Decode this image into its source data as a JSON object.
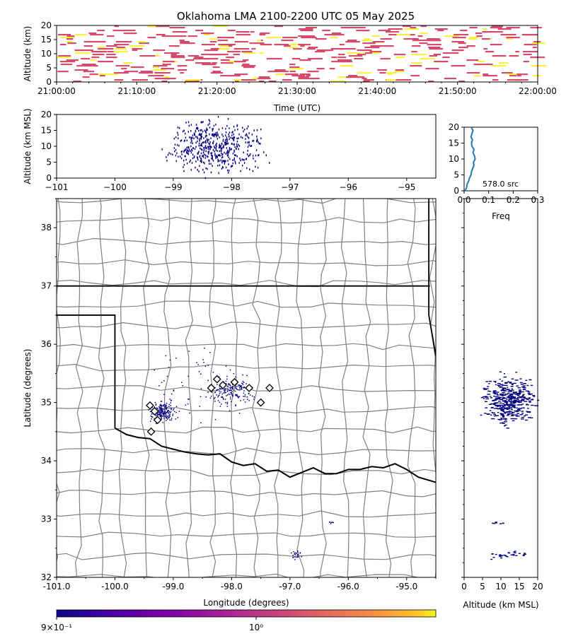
{
  "title": "Oklahoma LMA 2100-2200 UTC 05 May 2025",
  "colors": {
    "dot": "#000080",
    "hist_line": "#1f77b4",
    "magenta": "#d44c6b",
    "yellow": "#f7f23c",
    "county": "#808080",
    "state": "#000000"
  },
  "chart_data": [
    {
      "name": "time-height",
      "type": "heatmap",
      "xlabel": "Time (UTC)",
      "ylabel": "Altitude (km)",
      "xticks": [
        "21:00:00",
        "21:10:00",
        "21:20:00",
        "21:30:00",
        "21:40:00",
        "21:50:00",
        "22:00:00"
      ],
      "xlim_minutes": [
        0,
        60
      ],
      "ylim": [
        0,
        20
      ],
      "yticks": [
        "0",
        "5",
        "10",
        "15",
        "20"
      ]
    },
    {
      "name": "lon-alt",
      "type": "scatter",
      "ylabel": "Altitude (km MSL)",
      "xlim": [
        -101,
        -94.5
      ],
      "ylim": [
        0,
        20
      ],
      "xticks": [
        "−101",
        "−100",
        "−99",
        "−98",
        "−97",
        "−96",
        "−95"
      ],
      "yticks": [
        "0",
        "5",
        "10",
        "15",
        "20"
      ]
    },
    {
      "name": "alt-histogram",
      "type": "line",
      "xlabel": "Freq",
      "xlim": [
        0,
        0.3
      ],
      "ylim": [
        0,
        20
      ],
      "xticks": [
        "0.0",
        "0.1",
        "0.2",
        "0.3"
      ],
      "yticks": [
        "0",
        "5",
        "10",
        "15",
        "20"
      ],
      "annotation": "578.0 src",
      "freq": [
        0.01,
        0.012,
        0.018,
        0.022,
        0.028,
        0.03,
        0.035,
        0.04,
        0.038,
        0.045,
        0.042,
        0.036,
        0.04,
        0.032,
        0.03,
        0.034,
        0.028,
        0.032,
        0.036,
        0.03
      ],
      "altitude_km": [
        1,
        2,
        3,
        4,
        5,
        6,
        7,
        8,
        9,
        10,
        11,
        12,
        13,
        14,
        15,
        16,
        17,
        18,
        19,
        19.8
      ]
    },
    {
      "name": "plan-view",
      "type": "scatter",
      "xlabel": "Longitude (degrees)",
      "ylabel": "Latitude (degrees)",
      "xlim": [
        -101,
        -94.5
      ],
      "ylim": [
        32,
        38.5
      ],
      "xticks": [
        "-101.0",
        "-100.0",
        "-99.0",
        "-98.0",
        "-97.0",
        "-96.0",
        "-95.0"
      ],
      "yticks": [
        "32",
        "33",
        "34",
        "35",
        "36",
        "37",
        "38"
      ],
      "stations": [
        [
          -99.4,
          34.95
        ],
        [
          -99.32,
          34.85
        ],
        [
          -99.27,
          34.7
        ],
        [
          -99.38,
          34.5
        ],
        [
          -98.25,
          35.4
        ],
        [
          -98.15,
          35.3
        ],
        [
          -98.35,
          35.25
        ],
        [
          -97.95,
          35.35
        ],
        [
          -97.7,
          35.25
        ],
        [
          -97.5,
          35.0
        ],
        [
          -97.35,
          35.25
        ]
      ]
    },
    {
      "name": "alt-lat",
      "type": "scatter",
      "xlabel": "Altitude (km MSL)",
      "xlim": [
        0,
        20
      ],
      "ylim": [
        32,
        38.5
      ],
      "xticks": [
        "0",
        "5",
        "10",
        "15",
        "20"
      ]
    },
    {
      "name": "colorbar",
      "type": "colorbar",
      "tick_labels": [
        "9×10⁻¹",
        "10⁰"
      ],
      "tick_values": [
        0.9,
        1.0
      ]
    }
  ]
}
